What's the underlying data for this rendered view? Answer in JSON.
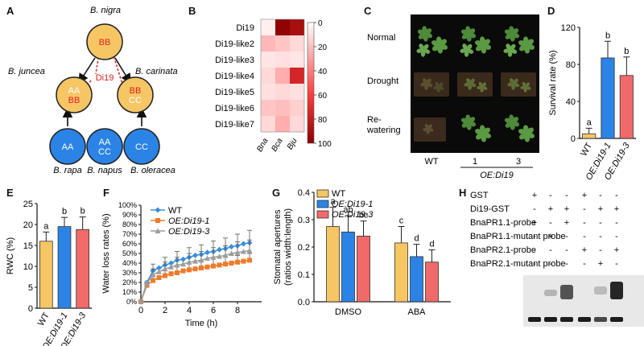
{
  "panels": {
    "A": "A",
    "B": "B",
    "C": "C",
    "D": "D",
    "E": "E",
    "F": "F",
    "G": "G",
    "H": "H"
  },
  "panelA": {
    "nodes": [
      {
        "id": "nigra",
        "genome": [
          "BB"
        ],
        "species": "B. nigra",
        "fill": "#f6c665"
      },
      {
        "id": "juncea",
        "genome": [
          "AA",
          "BB"
        ],
        "species": "B. juncea",
        "fill": "#f6c665"
      },
      {
        "id": "carinata",
        "genome": [
          "BB",
          "CC"
        ],
        "species": "B. carinata",
        "fill": "#f6c665"
      },
      {
        "id": "rapa",
        "genome": [
          "AA"
        ],
        "species": "B. rapa",
        "fill": "#2b83e6"
      },
      {
        "id": "napus",
        "genome": [
          "AA",
          "CC"
        ],
        "species": "B. napus",
        "fill": "#2b83e6"
      },
      {
        "id": "oleracea",
        "genome": [
          "CC"
        ],
        "species": "B. oleracea",
        "fill": "#2b83e6"
      }
    ],
    "gene_label": "Di19"
  },
  "panelB": {
    "rows": [
      "Di19",
      "Di19-like2",
      "Di19-like3",
      "Di19-like4",
      "Di19-like5",
      "Di19-like6",
      "Di19-like7"
    ],
    "cols": [
      "Bna",
      "Bca",
      "Bju"
    ],
    "values": [
      [
        5,
        98,
        90
      ],
      [
        22,
        18,
        12
      ],
      [
        8,
        10,
        8
      ],
      [
        12,
        25,
        75
      ],
      [
        10,
        12,
        10
      ],
      [
        18,
        20,
        15
      ],
      [
        12,
        25,
        12
      ]
    ],
    "scale_ticks": [
      "0",
      "20",
      "40",
      "60",
      "80",
      "100"
    ],
    "color_low": "#ffffff",
    "color_high": "#8b0000"
  },
  "panelC": {
    "row_labels": [
      "Normal",
      "Drought",
      "Re-\nwatering"
    ],
    "row_label_lines": [
      [
        "Normal"
      ],
      [
        "Drought"
      ],
      [
        "Re-",
        "watering"
      ]
    ],
    "col_labels": [
      "WT",
      "1",
      "3"
    ],
    "group_label": "OE:Di19"
  },
  "panelD": {
    "chart_data": {
      "type": "bar",
      "categories": [
        "WT",
        "OE:Di19-1",
        "OE:Di19-3"
      ],
      "values": [
        5,
        87,
        68
      ],
      "errors": [
        6,
        18,
        20
      ],
      "letters": [
        "a",
        "b",
        "b"
      ],
      "colors": [
        "#f6c665",
        "#2b83e6",
        "#f06a6a"
      ],
      "ylabel": "Survival rate (%)",
      "ylim": [
        0,
        120
      ],
      "yticks": [
        0,
        40,
        80,
        120
      ]
    }
  },
  "panelE": {
    "chart_data": {
      "type": "bar",
      "categories": [
        "WT",
        "OE:Di19-1",
        "OE:Di19-3"
      ],
      "values": [
        16,
        19.5,
        18.8
      ],
      "errors": [
        2.2,
        2.2,
        3.0
      ],
      "letters": [
        "a",
        "b",
        "b"
      ],
      "colors": [
        "#f6c665",
        "#2b83e6",
        "#f06a6a"
      ],
      "ylabel": "RWC (%)",
      "ylim": [
        0,
        25
      ],
      "yticks": [
        0,
        5,
        10,
        15,
        20,
        25
      ]
    }
  },
  "panelF": {
    "chart_data": {
      "type": "line",
      "x": [
        0,
        0.5,
        1,
        1.5,
        2,
        2.5,
        3,
        3.5,
        4,
        4.5,
        5,
        5.5,
        6,
        6.5,
        7,
        7.5,
        8,
        8.5,
        9
      ],
      "series": [
        {
          "name": "WT",
          "color": "#3a8fdc",
          "marker": "diamond",
          "values": [
            0,
            20,
            32,
            35,
            38,
            40,
            43,
            44,
            46,
            48,
            49,
            51,
            52,
            54,
            55,
            57,
            58,
            60,
            61
          ],
          "errors": [
            0,
            5,
            7,
            7,
            8,
            9,
            9,
            10,
            10,
            10,
            10,
            11,
            11,
            11,
            11,
            12,
            12,
            12,
            13
          ]
        },
        {
          "name": "OE:Di19-1",
          "color": "#f07a2a",
          "marker": "square",
          "values": [
            0,
            17,
            22,
            25,
            27,
            29,
            30,
            32,
            33,
            34,
            35,
            36,
            37,
            38,
            39,
            40,
            41,
            42,
            43
          ],
          "errors": [
            0,
            4,
            5,
            5,
            5,
            5,
            6,
            6,
            6,
            6,
            7,
            7,
            7,
            7,
            7,
            7,
            7,
            7,
            7
          ]
        },
        {
          "name": "OE:Di19-3",
          "color": "#9c9c9c",
          "marker": "triangle",
          "values": [
            0,
            19,
            28,
            31,
            34,
            36,
            38,
            39,
            41,
            42,
            43,
            45,
            46,
            47,
            48,
            50,
            51,
            52,
            53
          ],
          "errors": [
            0,
            5,
            6,
            7,
            7,
            8,
            8,
            8,
            9,
            9,
            9,
            9,
            10,
            10,
            10,
            10,
            11,
            11,
            11
          ]
        }
      ],
      "xlabel": "Time (h)",
      "ylabel": "Water loss rates (%)",
      "xlim": [
        0,
        10
      ],
      "ylim": [
        0,
        100
      ],
      "xticks": [
        0,
        2,
        4,
        6,
        8
      ],
      "yticks": [
        "0%",
        "10%",
        "20%",
        "30%",
        "40%",
        "50%",
        "60%",
        "70%",
        "80%",
        "90%",
        "100%"
      ]
    }
  },
  "panelG": {
    "chart_data": {
      "type": "bar",
      "categories": [
        "DMSO",
        "ABA"
      ],
      "series": [
        {
          "name": "WT",
          "color": "#f6c665",
          "values": [
            0.275,
            0.215
          ],
          "errors": [
            0.07,
            0.06
          ],
          "letters": [
            "a",
            "c"
          ]
        },
        {
          "name": "OE:Di19-1",
          "color": "#2b83e6",
          "values": [
            0.255,
            0.165
          ],
          "errors": [
            0.06,
            0.045
          ],
          "letters": [
            "ab",
            "d"
          ]
        },
        {
          "name": "OE:Di19-3",
          "color": "#f06a6a",
          "values": [
            0.24,
            0.145
          ],
          "errors": [
            0.055,
            0.045
          ],
          "letters": [
            "bc",
            "d"
          ]
        }
      ],
      "ylabel": "Stomatal apertures",
      "ylabel2": "(ratios width:length)",
      "ylim": [
        0,
        0.4
      ],
      "yticks": [
        "0.0",
        "0.1",
        "0.2",
        "0.3",
        "0.4"
      ]
    }
  },
  "panelH": {
    "rows": [
      {
        "label": "GST",
        "marks": [
          "+",
          "-",
          "-",
          "+",
          "-",
          "-"
        ]
      },
      {
        "label": "Di19-GST",
        "marks": [
          "-",
          "+",
          "+",
          "-",
          "+",
          "+"
        ]
      },
      {
        "label": "BnaPR1.1-probe",
        "marks": [
          "+",
          "-",
          "+",
          "-",
          "-",
          "-"
        ]
      },
      {
        "label": "BnaPR1.1-mutant probe",
        "marks": [
          "-",
          "+",
          "-",
          "-",
          "-",
          "-"
        ]
      },
      {
        "label": "BnaPR2.1-probe",
        "marks": [
          "-",
          "-",
          "-",
          "+",
          "-",
          "+"
        ]
      },
      {
        "label": "BnaPR2.1-mutant probe",
        "marks": [
          "-",
          "-",
          "-",
          "-",
          "+",
          "-"
        ]
      }
    ]
  }
}
